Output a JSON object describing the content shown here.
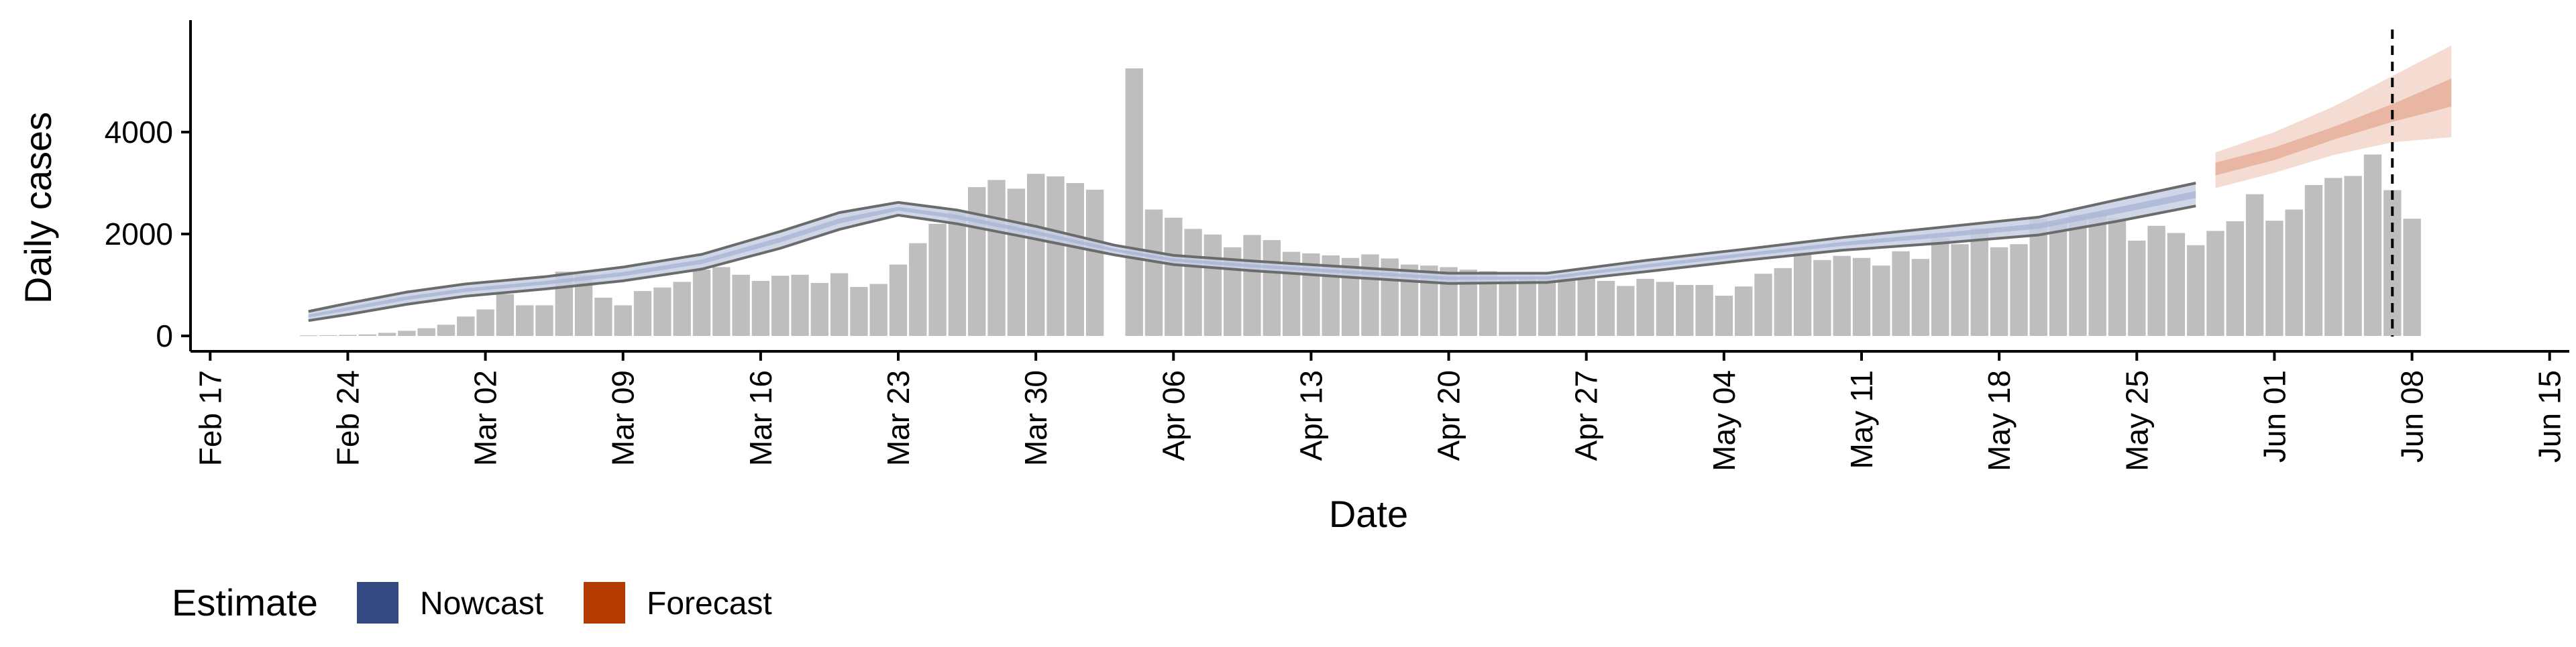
{
  "chart_data": {
    "type": "bar",
    "title": "",
    "xlabel": "Date",
    "ylabel": "Daily cases",
    "ylim": [
      0,
      5800
    ],
    "y_ticks": [
      0,
      2000,
      4000
    ],
    "y_tick_labels": [
      "0",
      "2000",
      "4000"
    ],
    "x_ticks": [
      "2020-02-17",
      "2020-02-24",
      "2020-03-02",
      "2020-03-09",
      "2020-03-16",
      "2020-03-23",
      "2020-03-30",
      "2020-04-06",
      "2020-04-13",
      "2020-04-20",
      "2020-04-27",
      "2020-05-04",
      "2020-05-11",
      "2020-05-18",
      "2020-05-25",
      "2020-06-01",
      "2020-06-08",
      "2020-06-15"
    ],
    "x_tick_labels": [
      "Feb 17",
      "Feb 24",
      "Mar 02",
      "Mar 09",
      "Mar 16",
      "Mar 23",
      "Mar 30",
      "Apr 06",
      "Apr 13",
      "Apr 20",
      "Apr 27",
      "May 04",
      "May 11",
      "May 18",
      "May 25",
      "Jun 01",
      "Jun 08",
      "Jun 15"
    ],
    "xlim": [
      "2020-02-16",
      "2020-06-16"
    ],
    "grid": false,
    "bars": {
      "name": "Daily cases",
      "color": "#bebebe",
      "start_date": "2020-02-22",
      "values": [
        10,
        15,
        20,
        30,
        60,
        100,
        150,
        220,
        380,
        520,
        820,
        600,
        600,
        1260,
        1200,
        750,
        600,
        880,
        950,
        1060,
        1300,
        1350,
        1200,
        1080,
        1180,
        1200,
        1040,
        1230,
        960,
        1020,
        1400,
        1820,
        2200,
        2450,
        2920,
        3060,
        2890,
        3180,
        3130,
        3000,
        2870,
        0,
        5250,
        2480,
        2320,
        2100,
        1990,
        1740,
        1980,
        1880,
        1650,
        1620,
        1580,
        1530,
        1600,
        1520,
        1400,
        1380,
        1350,
        1300,
        1270,
        1150,
        1150,
        1130,
        1200,
        1160,
        1080,
        980,
        1120,
        1060,
        1000,
        1000,
        790,
        970,
        1220,
        1330,
        1640,
        1490,
        1570,
        1530,
        1380,
        1660,
        1510,
        1920,
        1800,
        2110,
        1740,
        1800,
        2300,
        2220,
        2370,
        2400,
        2310,
        1870,
        2160,
        2020,
        1780,
        2060,
        2250,
        2780,
        2260,
        2480,
        2960,
        3100,
        3140,
        3560,
        2860,
        2300
      ]
    },
    "nowcast": {
      "name": "Nowcast",
      "color": "#3b4f87",
      "dates": [
        "2020-02-22",
        "2020-02-24",
        "2020-02-27",
        "2020-03-01",
        "2020-03-05",
        "2020-03-09",
        "2020-03-13",
        "2020-03-17",
        "2020-03-20",
        "2020-03-23",
        "2020-03-26",
        "2020-03-30",
        "2020-04-03",
        "2020-04-06",
        "2020-04-10",
        "2020-04-15",
        "2020-04-20",
        "2020-04-25",
        "2020-04-30",
        "2020-05-05",
        "2020-05-10",
        "2020-05-15",
        "2020-05-20",
        "2020-05-24",
        "2020-05-28"
      ],
      "lower": [
        300,
        420,
        620,
        780,
        920,
        1080,
        1310,
        1720,
        2090,
        2370,
        2200,
        1900,
        1590,
        1400,
        1280,
        1150,
        1030,
        1050,
        1260,
        1480,
        1680,
        1820,
        1980,
        2250,
        2550
      ],
      "upper": [
        480,
        640,
        860,
        1020,
        1160,
        1350,
        1600,
        2050,
        2420,
        2620,
        2470,
        2150,
        1780,
        1580,
        1470,
        1350,
        1230,
        1230,
        1480,
        1700,
        1930,
        2130,
        2330,
        2670,
        3000
      ]
    },
    "forecast": {
      "name": "Forecast",
      "color": "#b33a0a",
      "dates": [
        "2020-05-29",
        "2020-06-01",
        "2020-06-04",
        "2020-06-07",
        "2020-06-10"
      ],
      "lower_outer": [
        2900,
        3200,
        3550,
        3800,
        3900
      ],
      "upper_outer": [
        3600,
        4000,
        4500,
        5100,
        5700
      ],
      "lower_inner": [
        3150,
        3450,
        3850,
        4200,
        4500
      ],
      "upper_inner": [
        3400,
        3700,
        4100,
        4550,
        5050
      ]
    },
    "vline_date": "2020-06-07",
    "legend": {
      "title": "Estimate",
      "position": "bottom-left",
      "entries": [
        {
          "label": "Nowcast",
          "color": "#34497f"
        },
        {
          "label": "Forecast",
          "color": "#b33a00"
        }
      ]
    }
  }
}
